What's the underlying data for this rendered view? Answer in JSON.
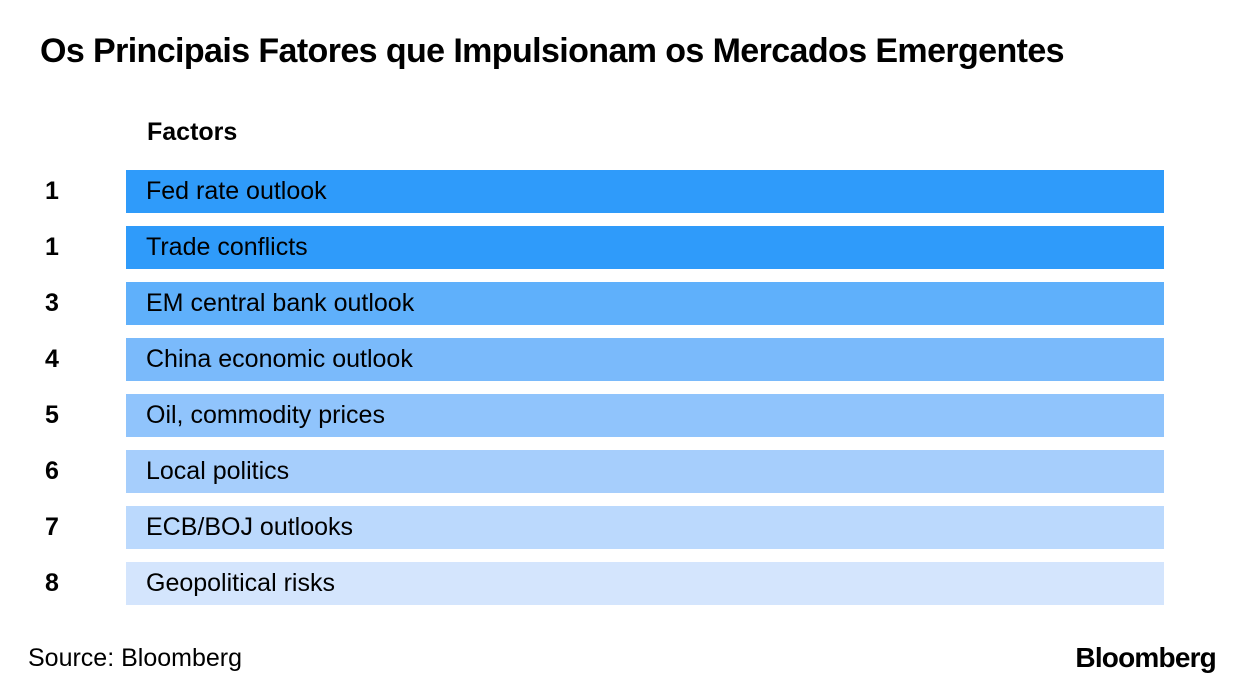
{
  "meta": {
    "background_color": "#ffffff",
    "text_color": "#000000"
  },
  "header": {
    "title": "Os Principais Fatores que Impulsionam os Mercados Emergentes"
  },
  "chart_data": {
    "type": "bar",
    "orientation": "horizontal",
    "title": "Os Principais Fatores que Impulsionam os Mercados Emergentes",
    "column_header": "Factors",
    "categories": [
      "Fed rate outlook",
      "Trade conflicts",
      "EM central bank outlook",
      "China economic outlook",
      "Oil, commodity prices",
      "Local politics",
      "ECB/BOJ outlooks",
      "Geopolitical risks"
    ],
    "values": [
      1,
      1,
      3,
      4,
      5,
      6,
      7,
      8
    ],
    "value_meaning": "rank (1 = most important; two factors tied at rank 1)",
    "bar_style": "all bars equal full length; fill shade encodes rank from dark to light",
    "rows": [
      {
        "rank": "1",
        "label": "Fed rate outlook",
        "color": "#2F9BFA"
      },
      {
        "rank": "1",
        "label": "Trade conflicts",
        "color": "#2F9BFA"
      },
      {
        "rank": "3",
        "label": "EM central bank outlook",
        "color": "#5FB0FB"
      },
      {
        "rank": "4",
        "label": "China economic outlook",
        "color": "#7ABAFB"
      },
      {
        "rank": "5",
        "label": "Oil, commodity prices",
        "color": "#90C4FC"
      },
      {
        "rank": "6",
        "label": "Local politics",
        "color": "#A6CEFC"
      },
      {
        "rank": "7",
        "label": "ECB/BOJ outlooks",
        "color": "#BBD9FD"
      },
      {
        "rank": "8",
        "label": "Geopolitical risks",
        "color": "#D4E5FD"
      }
    ],
    "legend": null,
    "grid": false
  },
  "footer": {
    "source": "Source: Bloomberg",
    "logo": "Bloomberg"
  }
}
